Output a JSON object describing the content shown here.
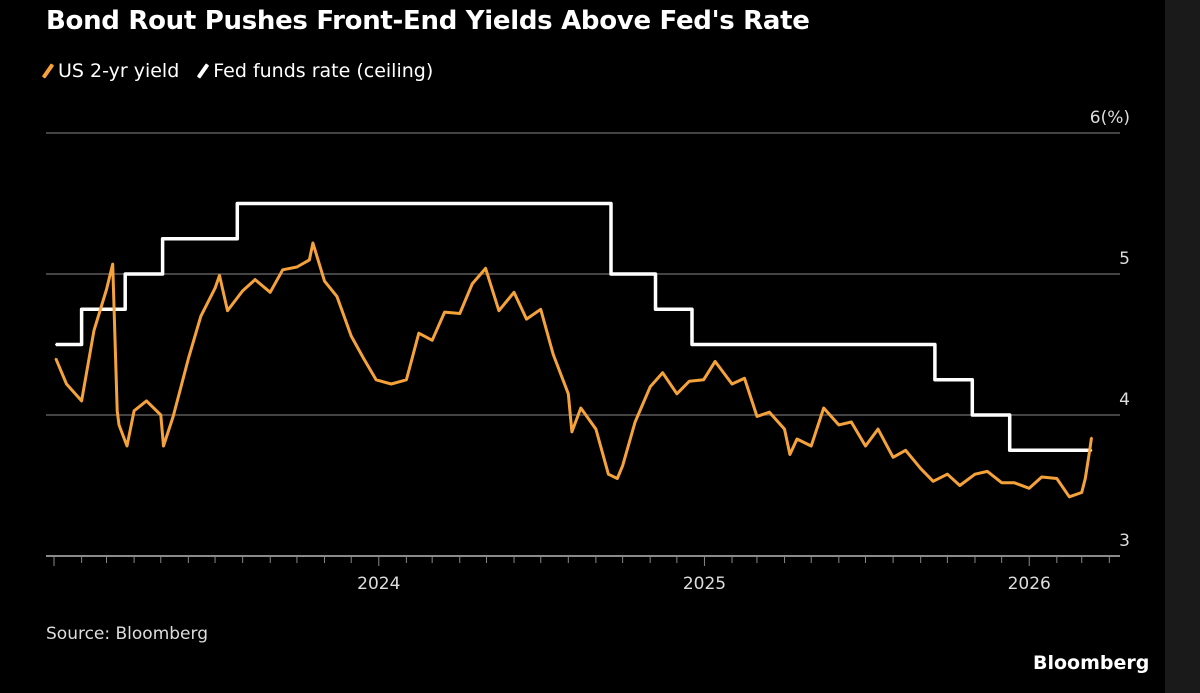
{
  "chart_data": {
    "type": "line",
    "title": "Bond Rout Pushes Front-End Yields Above Fed's Rate",
    "ylabel": "",
    "y_unit_label": "6(%)",
    "ylim": [
      3,
      6
    ],
    "yticks": [
      3,
      4,
      5,
      6
    ],
    "ytick_labels": [
      "3",
      "4",
      "5",
      "6(%)"
    ],
    "xlim": [
      "2022-12-23",
      "2026-04-13"
    ],
    "xtick_labels": [
      "2024",
      "2025",
      "2026"
    ],
    "grid": true,
    "legend_position": "top-left",
    "series": [
      {
        "name": "US 2-yr yield",
        "color": "#f5a23a",
        "points": [
          [
            "2023-01-03",
            4.4
          ],
          [
            "2023-01-15",
            4.22
          ],
          [
            "2023-02-01",
            4.1
          ],
          [
            "2023-02-15",
            4.6
          ],
          [
            "2023-03-01",
            4.89
          ],
          [
            "2023-03-08",
            5.07
          ],
          [
            "2023-03-13",
            4.03
          ],
          [
            "2023-03-15",
            3.93
          ],
          [
            "2023-03-24",
            3.78
          ],
          [
            "2023-04-01",
            4.03
          ],
          [
            "2023-04-15",
            4.1
          ],
          [
            "2023-05-01",
            4.0
          ],
          [
            "2023-05-04",
            3.78
          ],
          [
            "2023-05-15",
            3.99
          ],
          [
            "2023-06-01",
            4.4
          ],
          [
            "2023-06-15",
            4.7
          ],
          [
            "2023-07-01",
            4.9
          ],
          [
            "2023-07-06",
            4.99
          ],
          [
            "2023-07-15",
            4.74
          ],
          [
            "2023-08-01",
            4.88
          ],
          [
            "2023-08-15",
            4.96
          ],
          [
            "2023-09-01",
            4.87
          ],
          [
            "2023-09-15",
            5.03
          ],
          [
            "2023-10-01",
            5.05
          ],
          [
            "2023-10-15",
            5.1
          ],
          [
            "2023-10-19",
            5.22
          ],
          [
            "2023-11-01",
            4.95
          ],
          [
            "2023-11-15",
            4.84
          ],
          [
            "2023-12-01",
            4.56
          ],
          [
            "2023-12-15",
            4.4
          ],
          [
            "2023-12-29",
            4.25
          ],
          [
            "2024-01-15",
            4.22
          ],
          [
            "2024-02-01",
            4.25
          ],
          [
            "2024-02-15",
            4.58
          ],
          [
            "2024-03-01",
            4.53
          ],
          [
            "2024-03-15",
            4.73
          ],
          [
            "2024-04-01",
            4.72
          ],
          [
            "2024-04-15",
            4.93
          ],
          [
            "2024-04-30",
            5.04
          ],
          [
            "2024-05-15",
            4.74
          ],
          [
            "2024-06-01",
            4.87
          ],
          [
            "2024-06-15",
            4.68
          ],
          [
            "2024-07-01",
            4.75
          ],
          [
            "2024-07-15",
            4.43
          ],
          [
            "2024-08-01",
            4.15
          ],
          [
            "2024-08-05",
            3.88
          ],
          [
            "2024-08-15",
            4.05
          ],
          [
            "2024-09-01",
            3.9
          ],
          [
            "2024-09-15",
            3.58
          ],
          [
            "2024-09-25",
            3.55
          ],
          [
            "2024-10-01",
            3.64
          ],
          [
            "2024-10-15",
            3.95
          ],
          [
            "2024-11-01",
            4.2
          ],
          [
            "2024-11-15",
            4.3
          ],
          [
            "2024-12-01",
            4.15
          ],
          [
            "2024-12-15",
            4.24
          ],
          [
            "2024-12-31",
            4.25
          ],
          [
            "2025-01-13",
            4.38
          ],
          [
            "2025-02-01",
            4.22
          ],
          [
            "2025-02-15",
            4.26
          ],
          [
            "2025-03-01",
            3.99
          ],
          [
            "2025-03-15",
            4.02
          ],
          [
            "2025-04-01",
            3.9
          ],
          [
            "2025-04-07",
            3.72
          ],
          [
            "2025-04-15",
            3.83
          ],
          [
            "2025-05-01",
            3.78
          ],
          [
            "2025-05-15",
            4.05
          ],
          [
            "2025-06-01",
            3.93
          ],
          [
            "2025-06-15",
            3.95
          ],
          [
            "2025-07-01",
            3.78
          ],
          [
            "2025-07-15",
            3.9
          ],
          [
            "2025-08-01",
            3.7
          ],
          [
            "2025-08-15",
            3.75
          ],
          [
            "2025-09-01",
            3.62
          ],
          [
            "2025-09-15",
            3.53
          ],
          [
            "2025-10-01",
            3.58
          ],
          [
            "2025-10-15",
            3.5
          ],
          [
            "2025-11-01",
            3.58
          ],
          [
            "2025-11-15",
            3.6
          ],
          [
            "2025-12-01",
            3.52
          ],
          [
            "2025-12-15",
            3.52
          ],
          [
            "2026-01-01",
            3.48
          ],
          [
            "2026-01-15",
            3.56
          ],
          [
            "2026-02-01",
            3.55
          ],
          [
            "2026-02-15",
            3.42
          ],
          [
            "2026-03-01",
            3.45
          ],
          [
            "2026-03-05",
            3.55
          ],
          [
            "2026-03-10",
            3.75
          ],
          [
            "2026-03-12",
            3.84
          ]
        ]
      },
      {
        "name": "Fed funds rate (ceiling)",
        "color": "#ffffff",
        "step": true,
        "points": [
          [
            "2023-01-03",
            4.5
          ],
          [
            "2023-02-01",
            4.75
          ],
          [
            "2023-03-22",
            5.0
          ],
          [
            "2023-05-03",
            5.25
          ],
          [
            "2023-07-26",
            5.5
          ],
          [
            "2024-09-18",
            5.0
          ],
          [
            "2024-11-07",
            4.75
          ],
          [
            "2024-12-18",
            4.5
          ],
          [
            "2025-09-17",
            4.25
          ],
          [
            "2025-10-29",
            4.0
          ],
          [
            "2025-12-10",
            3.75
          ],
          [
            "2026-03-12",
            3.75
          ]
        ]
      }
    ]
  },
  "footer": {
    "source": "Source: Bloomberg",
    "brand": "Bloomberg"
  }
}
